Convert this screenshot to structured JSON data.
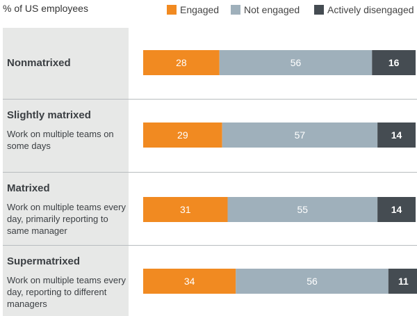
{
  "header": {
    "label": "% of US employees"
  },
  "legend": [
    {
      "name": "Engaged",
      "color": "#f18a21"
    },
    {
      "name": "Not engaged",
      "color": "#9fb0bb"
    },
    {
      "name": "Actively disengaged",
      "color": "#454c52"
    }
  ],
  "rows": [
    {
      "title": "Nonmatrixed",
      "description": ""
    },
    {
      "title": "Slightly matrixed",
      "description": "Work on multiple teams on some days"
    },
    {
      "title": "Matrixed",
      "description": "Work on multiple teams every day, primarily reporting to same manager"
    },
    {
      "title": "Supermatrixed",
      "description": "Work on multiple teams every day, reporting to different managers"
    }
  ],
  "chart_data": {
    "type": "bar",
    "orientation": "horizontal",
    "stacked": true,
    "categories": [
      "Nonmatrixed",
      "Slightly matrixed",
      "Matrixed",
      "Supermatrixed"
    ],
    "series": [
      {
        "name": "Engaged",
        "values": [
          28,
          29,
          31,
          34
        ],
        "color": "#f18a21"
      },
      {
        "name": "Not engaged",
        "values": [
          56,
          57,
          55,
          56
        ],
        "color": "#9fb0bb"
      },
      {
        "name": "Actively disengaged",
        "values": [
          16,
          14,
          14,
          11
        ],
        "color": "#454c52"
      }
    ],
    "xlim": [
      0,
      100
    ],
    "grid": false,
    "legend_position": "top-right",
    "data_labels": true
  }
}
